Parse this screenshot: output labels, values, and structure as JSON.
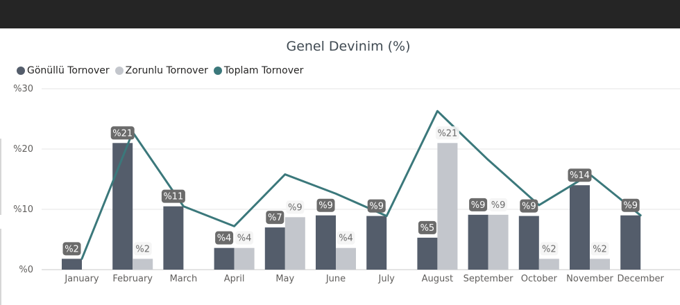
{
  "chart_data": {
    "type": "bar",
    "title": "Genel Devinim (%)",
    "categories": [
      "January",
      "February",
      "March",
      "April",
      "May",
      "June",
      "July",
      "August",
      "September",
      "October",
      "November",
      "December"
    ],
    "series": [
      {
        "name": "Gönüllü Tornover",
        "kind": "bar",
        "color": "#545d6b",
        "values": [
          1.8,
          21,
          10.5,
          3.6,
          7,
          9,
          8.9,
          5.3,
          9.1,
          8.9,
          14,
          9
        ],
        "labels": [
          "%2",
          "%21",
          "%11",
          "%4",
          "%7",
          "%9",
          "%9",
          "%5",
          "%9",
          "%9",
          "%14",
          "%9"
        ]
      },
      {
        "name": "Zorunlu Tornover",
        "kind": "bar",
        "color": "#c3c6cc",
        "values": [
          0,
          1.8,
          0,
          3.6,
          8.7,
          3.6,
          0,
          21,
          9.1,
          1.8,
          1.8,
          0
        ],
        "labels": [
          "",
          "%2",
          "",
          "%4",
          "%9",
          "%4",
          "",
          "%21",
          "%9",
          "%2",
          "%2",
          ""
        ]
      },
      {
        "name": "Toplam Tornover",
        "kind": "line",
        "color": "#3b787b",
        "values": [
          1.8,
          22.8,
          10.5,
          7.2,
          15.8,
          12.6,
          8.9,
          26.3,
          18.2,
          10.7,
          15.8,
          9
        ]
      }
    ],
    "ylim": [
      0,
      30
    ],
    "yticks": [
      0,
      10,
      20,
      30
    ],
    "ytick_labels": [
      "%0",
      "%10",
      "%20",
      "%30"
    ],
    "grid": true,
    "legend_position": "top-left"
  }
}
